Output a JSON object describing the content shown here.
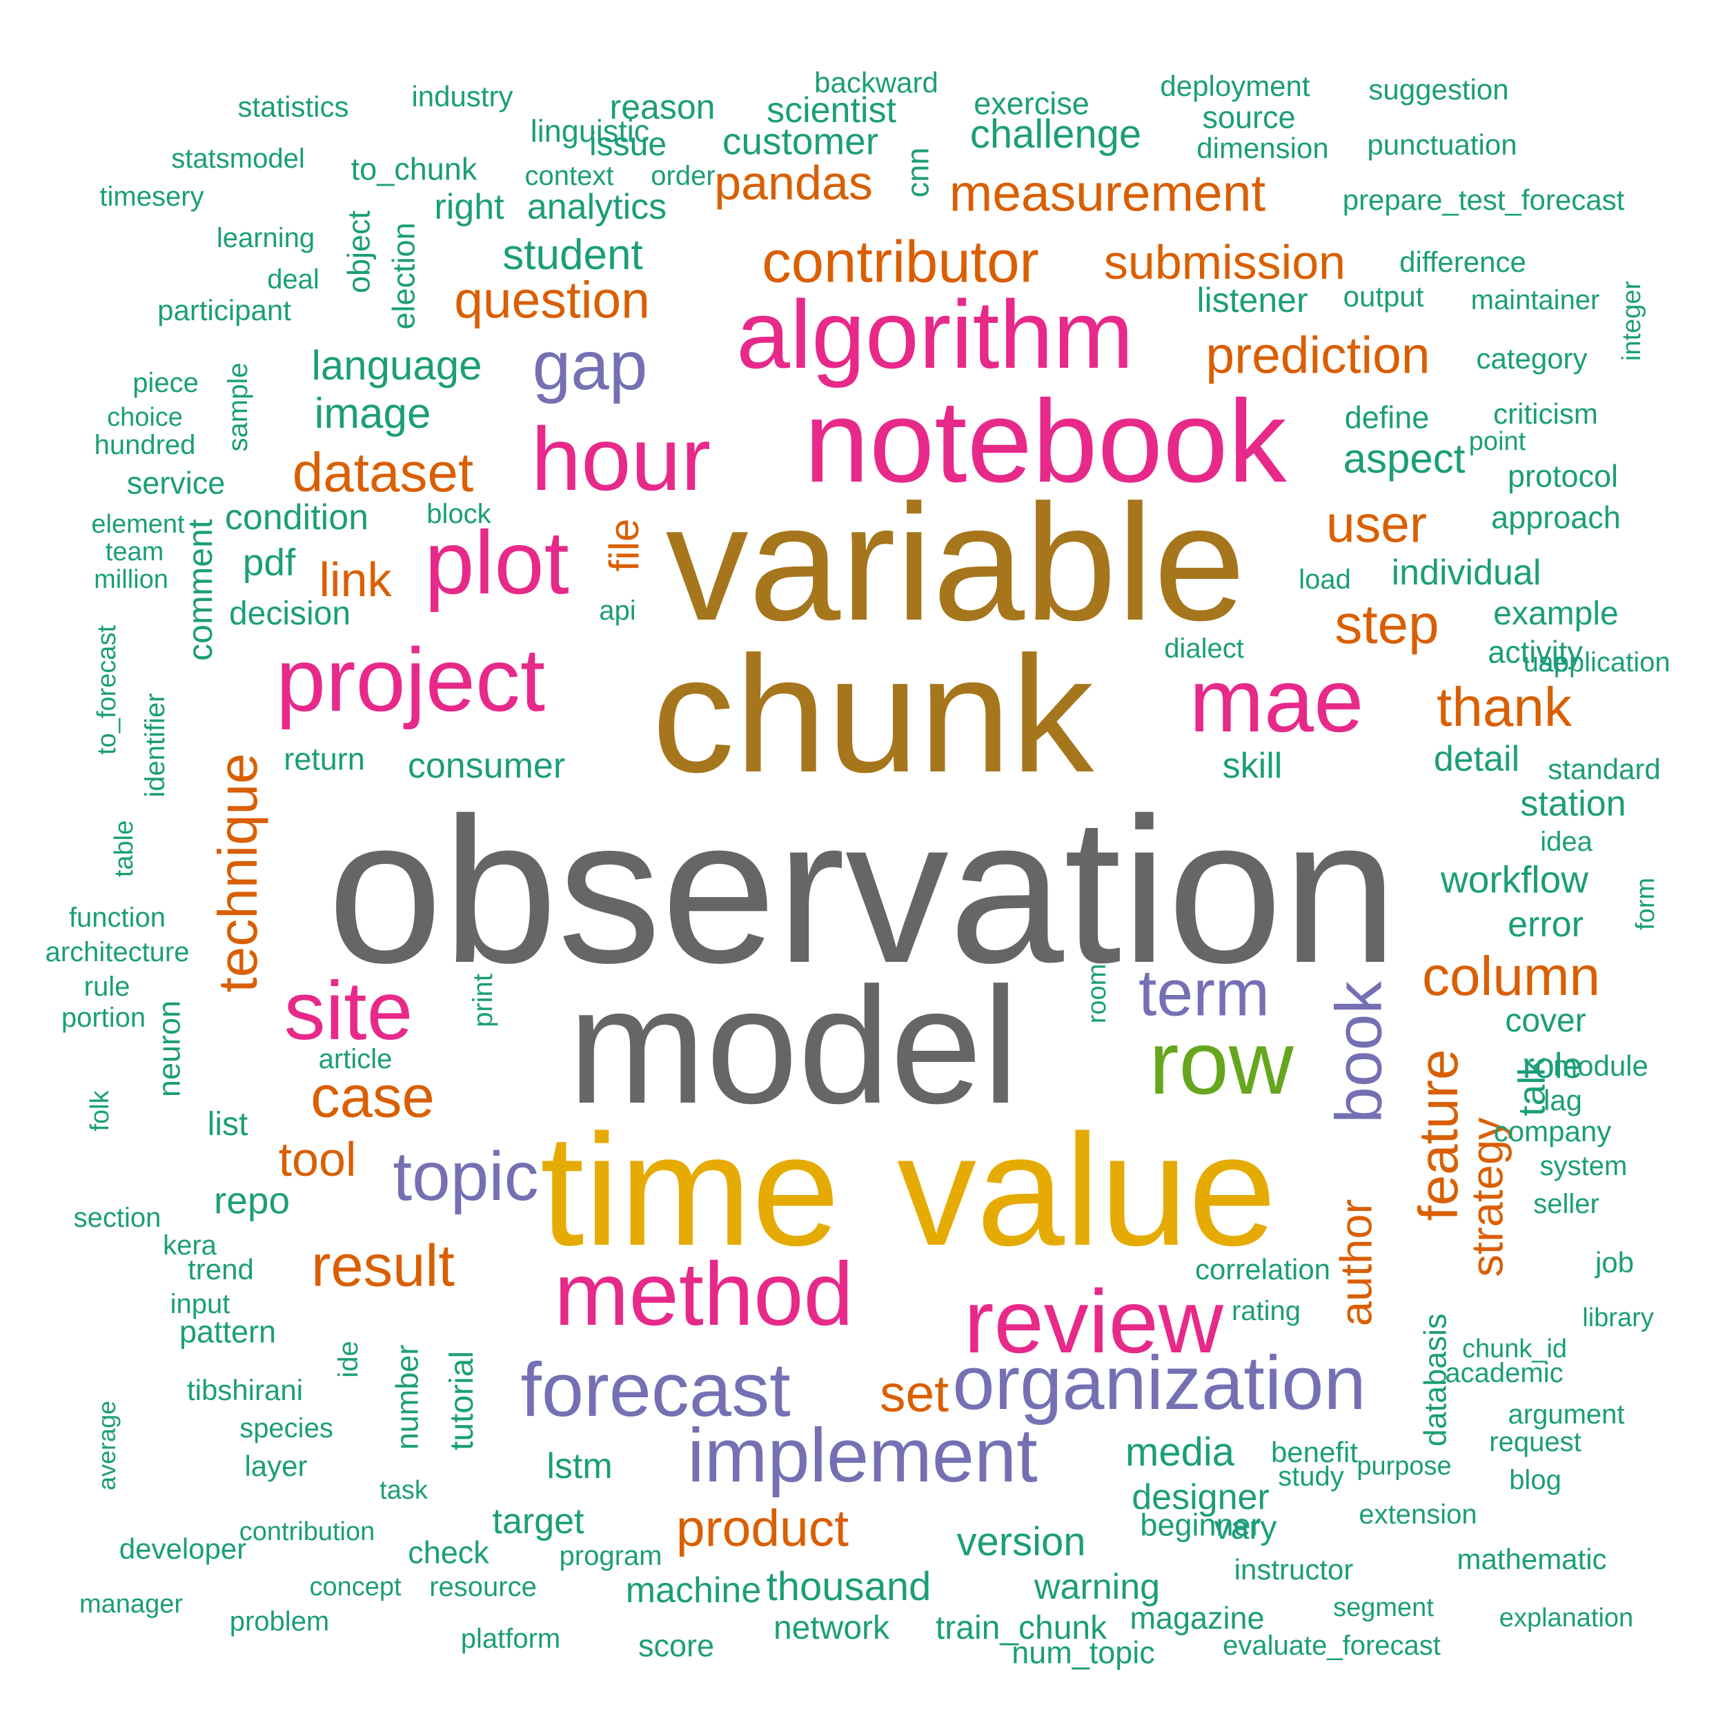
{
  "colors": {
    "gray": "#666666",
    "brown": "#A6761D",
    "gold": "#E6AB02",
    "magenta": "#E7298A",
    "purple": "#7570B3",
    "orange": "#D95F02",
    "green": "#66A61E",
    "teal": "#1B9E77"
  },
  "words": [
    {
      "text": "observation",
      "color": "gray"
    },
    {
      "text": "model",
      "color": "gray"
    },
    {
      "text": "chunk",
      "color": "brown"
    },
    {
      "text": "variable",
      "color": "brown"
    },
    {
      "text": "time",
      "color": "gold"
    },
    {
      "text": "value",
      "color": "gold"
    },
    {
      "text": "notebook",
      "color": "magenta"
    },
    {
      "text": "algorithm",
      "color": "magenta"
    },
    {
      "text": "hour",
      "color": "magenta"
    },
    {
      "text": "project",
      "color": "magenta"
    },
    {
      "text": "plot",
      "color": "magenta"
    },
    {
      "text": "mae",
      "color": "magenta"
    },
    {
      "text": "site",
      "color": "magenta"
    },
    {
      "text": "method",
      "color": "magenta"
    },
    {
      "text": "review",
      "color": "magenta"
    },
    {
      "text": "row",
      "color": "green"
    },
    {
      "text": "gap",
      "color": "purple"
    },
    {
      "text": "term",
      "color": "purple"
    },
    {
      "text": "book",
      "color": "purple"
    },
    {
      "text": "topic",
      "color": "purple"
    },
    {
      "text": "forecast",
      "color": "purple"
    },
    {
      "text": "organization",
      "color": "purple"
    },
    {
      "text": "implement",
      "color": "purple"
    },
    {
      "text": "contributor",
      "color": "orange"
    },
    {
      "text": "measurement",
      "color": "orange"
    },
    {
      "text": "pandas",
      "color": "orange"
    },
    {
      "text": "submission",
      "color": "orange"
    },
    {
      "text": "question",
      "color": "orange"
    },
    {
      "text": "prediction",
      "color": "orange"
    },
    {
      "text": "dataset",
      "color": "orange"
    },
    {
      "text": "user",
      "color": "orange"
    },
    {
      "text": "link",
      "color": "orange"
    },
    {
      "text": "file",
      "color": "orange"
    },
    {
      "text": "step",
      "color": "orange"
    },
    {
      "text": "thank",
      "color": "orange"
    },
    {
      "text": "technique",
      "color": "orange"
    },
    {
      "text": "column",
      "color": "orange"
    },
    {
      "text": "case",
      "color": "orange"
    },
    {
      "text": "feature",
      "color": "orange"
    },
    {
      "text": "tool",
      "color": "orange"
    },
    {
      "text": "strategy",
      "color": "orange"
    },
    {
      "text": "author",
      "color": "orange"
    },
    {
      "text": "result",
      "color": "orange"
    },
    {
      "text": "set",
      "color": "orange"
    },
    {
      "text": "product",
      "color": "orange"
    },
    {
      "text": "statistics",
      "color": "teal"
    },
    {
      "text": "industry",
      "color": "teal"
    },
    {
      "text": "reason",
      "color": "teal"
    },
    {
      "text": "backward",
      "color": "teal"
    },
    {
      "text": "scientist",
      "color": "teal"
    },
    {
      "text": "exercise",
      "color": "teal"
    },
    {
      "text": "deployment",
      "color": "teal"
    },
    {
      "text": "suggestion",
      "color": "teal"
    },
    {
      "text": "linguistic",
      "color": "teal"
    },
    {
      "text": "source",
      "color": "teal"
    },
    {
      "text": "issue",
      "color": "teal"
    },
    {
      "text": "customer",
      "color": "teal"
    },
    {
      "text": "challenge",
      "color": "teal"
    },
    {
      "text": "dimension",
      "color": "teal"
    },
    {
      "text": "punctuation",
      "color": "teal"
    },
    {
      "text": "statsmodel",
      "color": "teal"
    },
    {
      "text": "to_chunk",
      "color": "teal"
    },
    {
      "text": "context",
      "color": "teal"
    },
    {
      "text": "order",
      "color": "teal"
    },
    {
      "text": "cnn",
      "color": "teal"
    },
    {
      "text": "timesery",
      "color": "teal"
    },
    {
      "text": "right",
      "color": "teal"
    },
    {
      "text": "analytics",
      "color": "teal"
    },
    {
      "text": "prepare_test_forecast",
      "color": "teal"
    },
    {
      "text": "learning",
      "color": "teal"
    },
    {
      "text": "object",
      "color": "teal"
    },
    {
      "text": "election",
      "color": "teal"
    },
    {
      "text": "student",
      "color": "teal"
    },
    {
      "text": "difference",
      "color": "teal"
    },
    {
      "text": "deal",
      "color": "teal"
    },
    {
      "text": "participant",
      "color": "teal"
    },
    {
      "text": "listener",
      "color": "teal"
    },
    {
      "text": "output",
      "color": "teal"
    },
    {
      "text": "maintainer",
      "color": "teal"
    },
    {
      "text": "integer",
      "color": "teal"
    },
    {
      "text": "language",
      "color": "teal"
    },
    {
      "text": "category",
      "color": "teal"
    },
    {
      "text": "piece",
      "color": "teal"
    },
    {
      "text": "sample",
      "color": "teal"
    },
    {
      "text": "choice",
      "color": "teal"
    },
    {
      "text": "image",
      "color": "teal"
    },
    {
      "text": "define",
      "color": "teal"
    },
    {
      "text": "criticism",
      "color": "teal"
    },
    {
      "text": "hundred",
      "color": "teal"
    },
    {
      "text": "point",
      "color": "teal"
    },
    {
      "text": "aspect",
      "color": "teal"
    },
    {
      "text": "service",
      "color": "teal"
    },
    {
      "text": "protocol",
      "color": "teal"
    },
    {
      "text": "condition",
      "color": "teal"
    },
    {
      "text": "block",
      "color": "teal"
    },
    {
      "text": "element",
      "color": "teal"
    },
    {
      "text": "approach",
      "color": "teal"
    },
    {
      "text": "team",
      "color": "teal"
    },
    {
      "text": "pdf",
      "color": "teal"
    },
    {
      "text": "million",
      "color": "teal"
    },
    {
      "text": "load",
      "color": "teal"
    },
    {
      "text": "individual",
      "color": "teal"
    },
    {
      "text": "comment",
      "color": "teal"
    },
    {
      "text": "decision",
      "color": "teal"
    },
    {
      "text": "api",
      "color": "teal"
    },
    {
      "text": "to_forecast",
      "color": "teal"
    },
    {
      "text": "example",
      "color": "teal"
    },
    {
      "text": "dialect",
      "color": "teal"
    },
    {
      "text": "activity",
      "color": "teal"
    },
    {
      "text": "use",
      "color": "teal"
    },
    {
      "text": "application",
      "color": "teal"
    },
    {
      "text": "identifier",
      "color": "teal"
    },
    {
      "text": "return",
      "color": "teal"
    },
    {
      "text": "consumer",
      "color": "teal"
    },
    {
      "text": "skill",
      "color": "teal"
    },
    {
      "text": "detail",
      "color": "teal"
    },
    {
      "text": "standard",
      "color": "teal"
    },
    {
      "text": "station",
      "color": "teal"
    },
    {
      "text": "table",
      "color": "teal"
    },
    {
      "text": "idea",
      "color": "teal"
    },
    {
      "text": "workflow",
      "color": "teal"
    },
    {
      "text": "form",
      "color": "teal"
    },
    {
      "text": "function",
      "color": "teal"
    },
    {
      "text": "error",
      "color": "teal"
    },
    {
      "text": "architecture",
      "color": "teal"
    },
    {
      "text": "neuron",
      "color": "teal"
    },
    {
      "text": "room",
      "color": "teal"
    },
    {
      "text": "rule",
      "color": "teal"
    },
    {
      "text": "print",
      "color": "teal"
    },
    {
      "text": "portion",
      "color": "teal"
    },
    {
      "text": "cover",
      "color": "teal"
    },
    {
      "text": "article",
      "color": "teal"
    },
    {
      "text": "role",
      "color": "teal"
    },
    {
      "text": "module",
      "color": "teal"
    },
    {
      "text": "folk",
      "color": "teal"
    },
    {
      "text": "lag",
      "color": "teal"
    },
    {
      "text": "list",
      "color": "teal"
    },
    {
      "text": "company",
      "color": "teal"
    },
    {
      "text": "talk",
      "color": "teal"
    },
    {
      "text": "system",
      "color": "teal"
    },
    {
      "text": "repo",
      "color": "teal"
    },
    {
      "text": "seller",
      "color": "teal"
    },
    {
      "text": "section",
      "color": "teal"
    },
    {
      "text": "kera",
      "color": "teal"
    },
    {
      "text": "trend",
      "color": "teal"
    },
    {
      "text": "job",
      "color": "teal"
    },
    {
      "text": "correlation",
      "color": "teal"
    },
    {
      "text": "input",
      "color": "teal"
    },
    {
      "text": "ide",
      "color": "teal"
    },
    {
      "text": "rating",
      "color": "teal"
    },
    {
      "text": "library",
      "color": "teal"
    },
    {
      "text": "pattern",
      "color": "teal"
    },
    {
      "text": "number",
      "color": "teal"
    },
    {
      "text": "tutorial",
      "color": "teal"
    },
    {
      "text": "databasis",
      "color": "teal"
    },
    {
      "text": "chunk_id",
      "color": "teal"
    },
    {
      "text": "average",
      "color": "teal"
    },
    {
      "text": "academic",
      "color": "teal"
    },
    {
      "text": "tibshirani",
      "color": "teal"
    },
    {
      "text": "argument",
      "color": "teal"
    },
    {
      "text": "species",
      "color": "teal"
    },
    {
      "text": "request",
      "color": "teal"
    },
    {
      "text": "media",
      "color": "teal"
    },
    {
      "text": "benefit",
      "color": "teal"
    },
    {
      "text": "purpose",
      "color": "teal"
    },
    {
      "text": "layer",
      "color": "teal"
    },
    {
      "text": "lstm",
      "color": "teal"
    },
    {
      "text": "study",
      "color": "teal"
    },
    {
      "text": "blog",
      "color": "teal"
    },
    {
      "text": "task",
      "color": "teal"
    },
    {
      "text": "designer",
      "color": "teal"
    },
    {
      "text": "extension",
      "color": "teal"
    },
    {
      "text": "target",
      "color": "teal"
    },
    {
      "text": "vary",
      "color": "teal"
    },
    {
      "text": "beginner",
      "color": "teal"
    },
    {
      "text": "contribution",
      "color": "teal"
    },
    {
      "text": "version",
      "color": "teal"
    },
    {
      "text": "developer",
      "color": "teal"
    },
    {
      "text": "check",
      "color": "teal"
    },
    {
      "text": "program",
      "color": "teal"
    },
    {
      "text": "mathematic",
      "color": "teal"
    },
    {
      "text": "instructor",
      "color": "teal"
    },
    {
      "text": "concept",
      "color": "teal"
    },
    {
      "text": "resource",
      "color": "teal"
    },
    {
      "text": "machine",
      "color": "teal"
    },
    {
      "text": "thousand",
      "color": "teal"
    },
    {
      "text": "warning",
      "color": "teal"
    },
    {
      "text": "manager",
      "color": "teal"
    },
    {
      "text": "segment",
      "color": "teal"
    },
    {
      "text": "problem",
      "color": "teal"
    },
    {
      "text": "network",
      "color": "teal"
    },
    {
      "text": "train_chunk",
      "color": "teal"
    },
    {
      "text": "magazine",
      "color": "teal"
    },
    {
      "text": "explanation",
      "color": "teal"
    },
    {
      "text": "platform",
      "color": "teal"
    },
    {
      "text": "score",
      "color": "teal"
    },
    {
      "text": "evaluate_forecast",
      "color": "teal"
    },
    {
      "text": "num_topic",
      "color": "teal"
    }
  ]
}
